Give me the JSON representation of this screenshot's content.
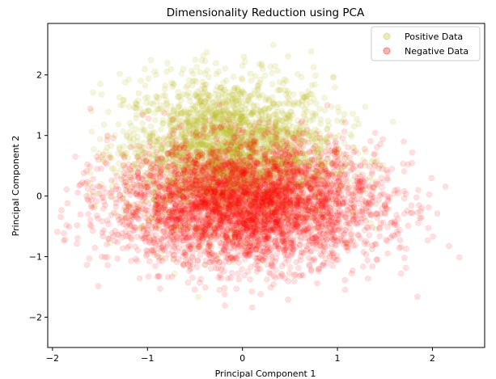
{
  "chart_data": {
    "type": "scatter",
    "title": "Dimensionality Reduction using PCA",
    "xlabel": "Principal Component 1",
    "ylabel": "Principal Component 2",
    "xlim": [
      -2.05,
      2.55
    ],
    "ylim": [
      -2.5,
      2.85
    ],
    "xticks": [
      -2,
      -1,
      0,
      1,
      2
    ],
    "yticks": [
      -2,
      -1,
      0,
      1,
      2
    ],
    "grid": false,
    "legend_position": "top-right",
    "series": [
      {
        "name": "Positive Data",
        "color": "#bcbd22",
        "alpha": 0.15,
        "distribution": {
          "center": [
            -0.15,
            0.75
          ],
          "spread": [
            0.55,
            0.6
          ],
          "extent_x": [
            -1.65,
            1.65
          ],
          "extent_y": [
            -1.8,
            2.65
          ]
        }
      },
      {
        "name": "Negative Data",
        "color": "#ff0000",
        "alpha": 0.12,
        "distribution": {
          "center": [
            0.05,
            -0.15
          ],
          "spread": [
            0.7,
            0.5
          ],
          "extent_x": [
            -1.95,
            2.35
          ],
          "extent_y": [
            -2.3,
            1.55
          ]
        }
      }
    ]
  }
}
